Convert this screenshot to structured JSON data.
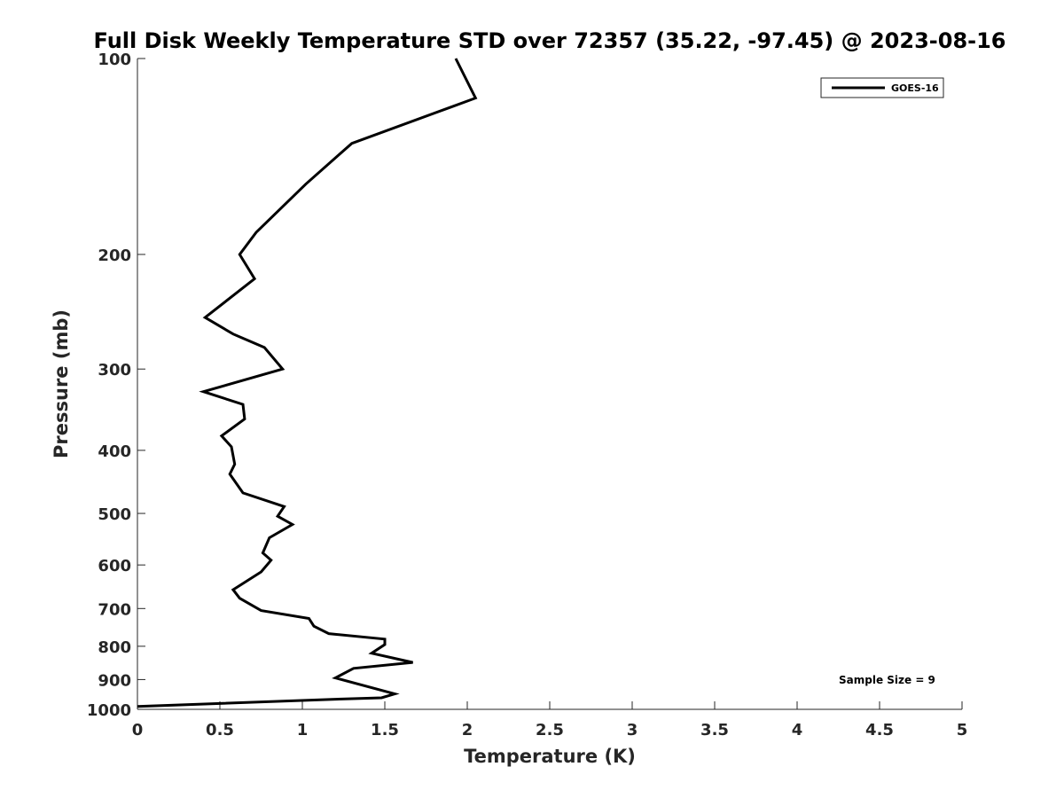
{
  "chart_data": {
    "type": "line",
    "title": "Full Disk Weekly Temperature STD over 72357 (35.22, -97.45) @ 2023-08-16",
    "xlabel": "Temperature (K)",
    "ylabel": "Pressure (mb)",
    "xlim": [
      0,
      5
    ],
    "ylim": [
      100,
      1000
    ],
    "y_scale": "log",
    "y_reversed": true,
    "x_ticks": [
      "0",
      "0.5",
      "1",
      "1.5",
      "2",
      "2.5",
      "3",
      "3.5",
      "4",
      "4.5",
      "5"
    ],
    "y_ticks": [
      "100",
      "200",
      "300",
      "400",
      "500",
      "600",
      "700",
      "800",
      "900",
      "1000"
    ],
    "grid": false,
    "legend_position": "top-right",
    "annotation": "Sample Size = 9",
    "series": [
      {
        "name": "GOES-16",
        "color": "#000000",
        "points": [
          [
            1.93,
            100
          ],
          [
            2.05,
            115
          ],
          [
            1.3,
            135
          ],
          [
            1.02,
            156
          ],
          [
            0.72,
            185
          ],
          [
            0.62,
            200
          ],
          [
            0.71,
            218
          ],
          [
            0.41,
            250
          ],
          [
            0.58,
            265
          ],
          [
            0.77,
            278
          ],
          [
            0.88,
            300
          ],
          [
            0.4,
            325
          ],
          [
            0.64,
            340
          ],
          [
            0.65,
            358
          ],
          [
            0.51,
            380
          ],
          [
            0.57,
            395
          ],
          [
            0.59,
            420
          ],
          [
            0.56,
            435
          ],
          [
            0.64,
            465
          ],
          [
            0.89,
            488
          ],
          [
            0.85,
            505
          ],
          [
            0.94,
            520
          ],
          [
            0.8,
            545
          ],
          [
            0.76,
            575
          ],
          [
            0.81,
            590
          ],
          [
            0.75,
            615
          ],
          [
            0.58,
            655
          ],
          [
            0.62,
            675
          ],
          [
            0.75,
            705
          ],
          [
            1.04,
            725
          ],
          [
            1.07,
            745
          ],
          [
            1.16,
            765
          ],
          [
            1.5,
            780
          ],
          [
            1.5,
            795
          ],
          [
            1.42,
            820
          ],
          [
            1.67,
            847
          ],
          [
            1.31,
            865
          ],
          [
            1.2,
            895
          ],
          [
            1.56,
            947
          ],
          [
            1.48,
            960
          ],
          [
            1.2,
            965
          ],
          [
            0.0,
            990
          ]
        ]
      }
    ]
  }
}
